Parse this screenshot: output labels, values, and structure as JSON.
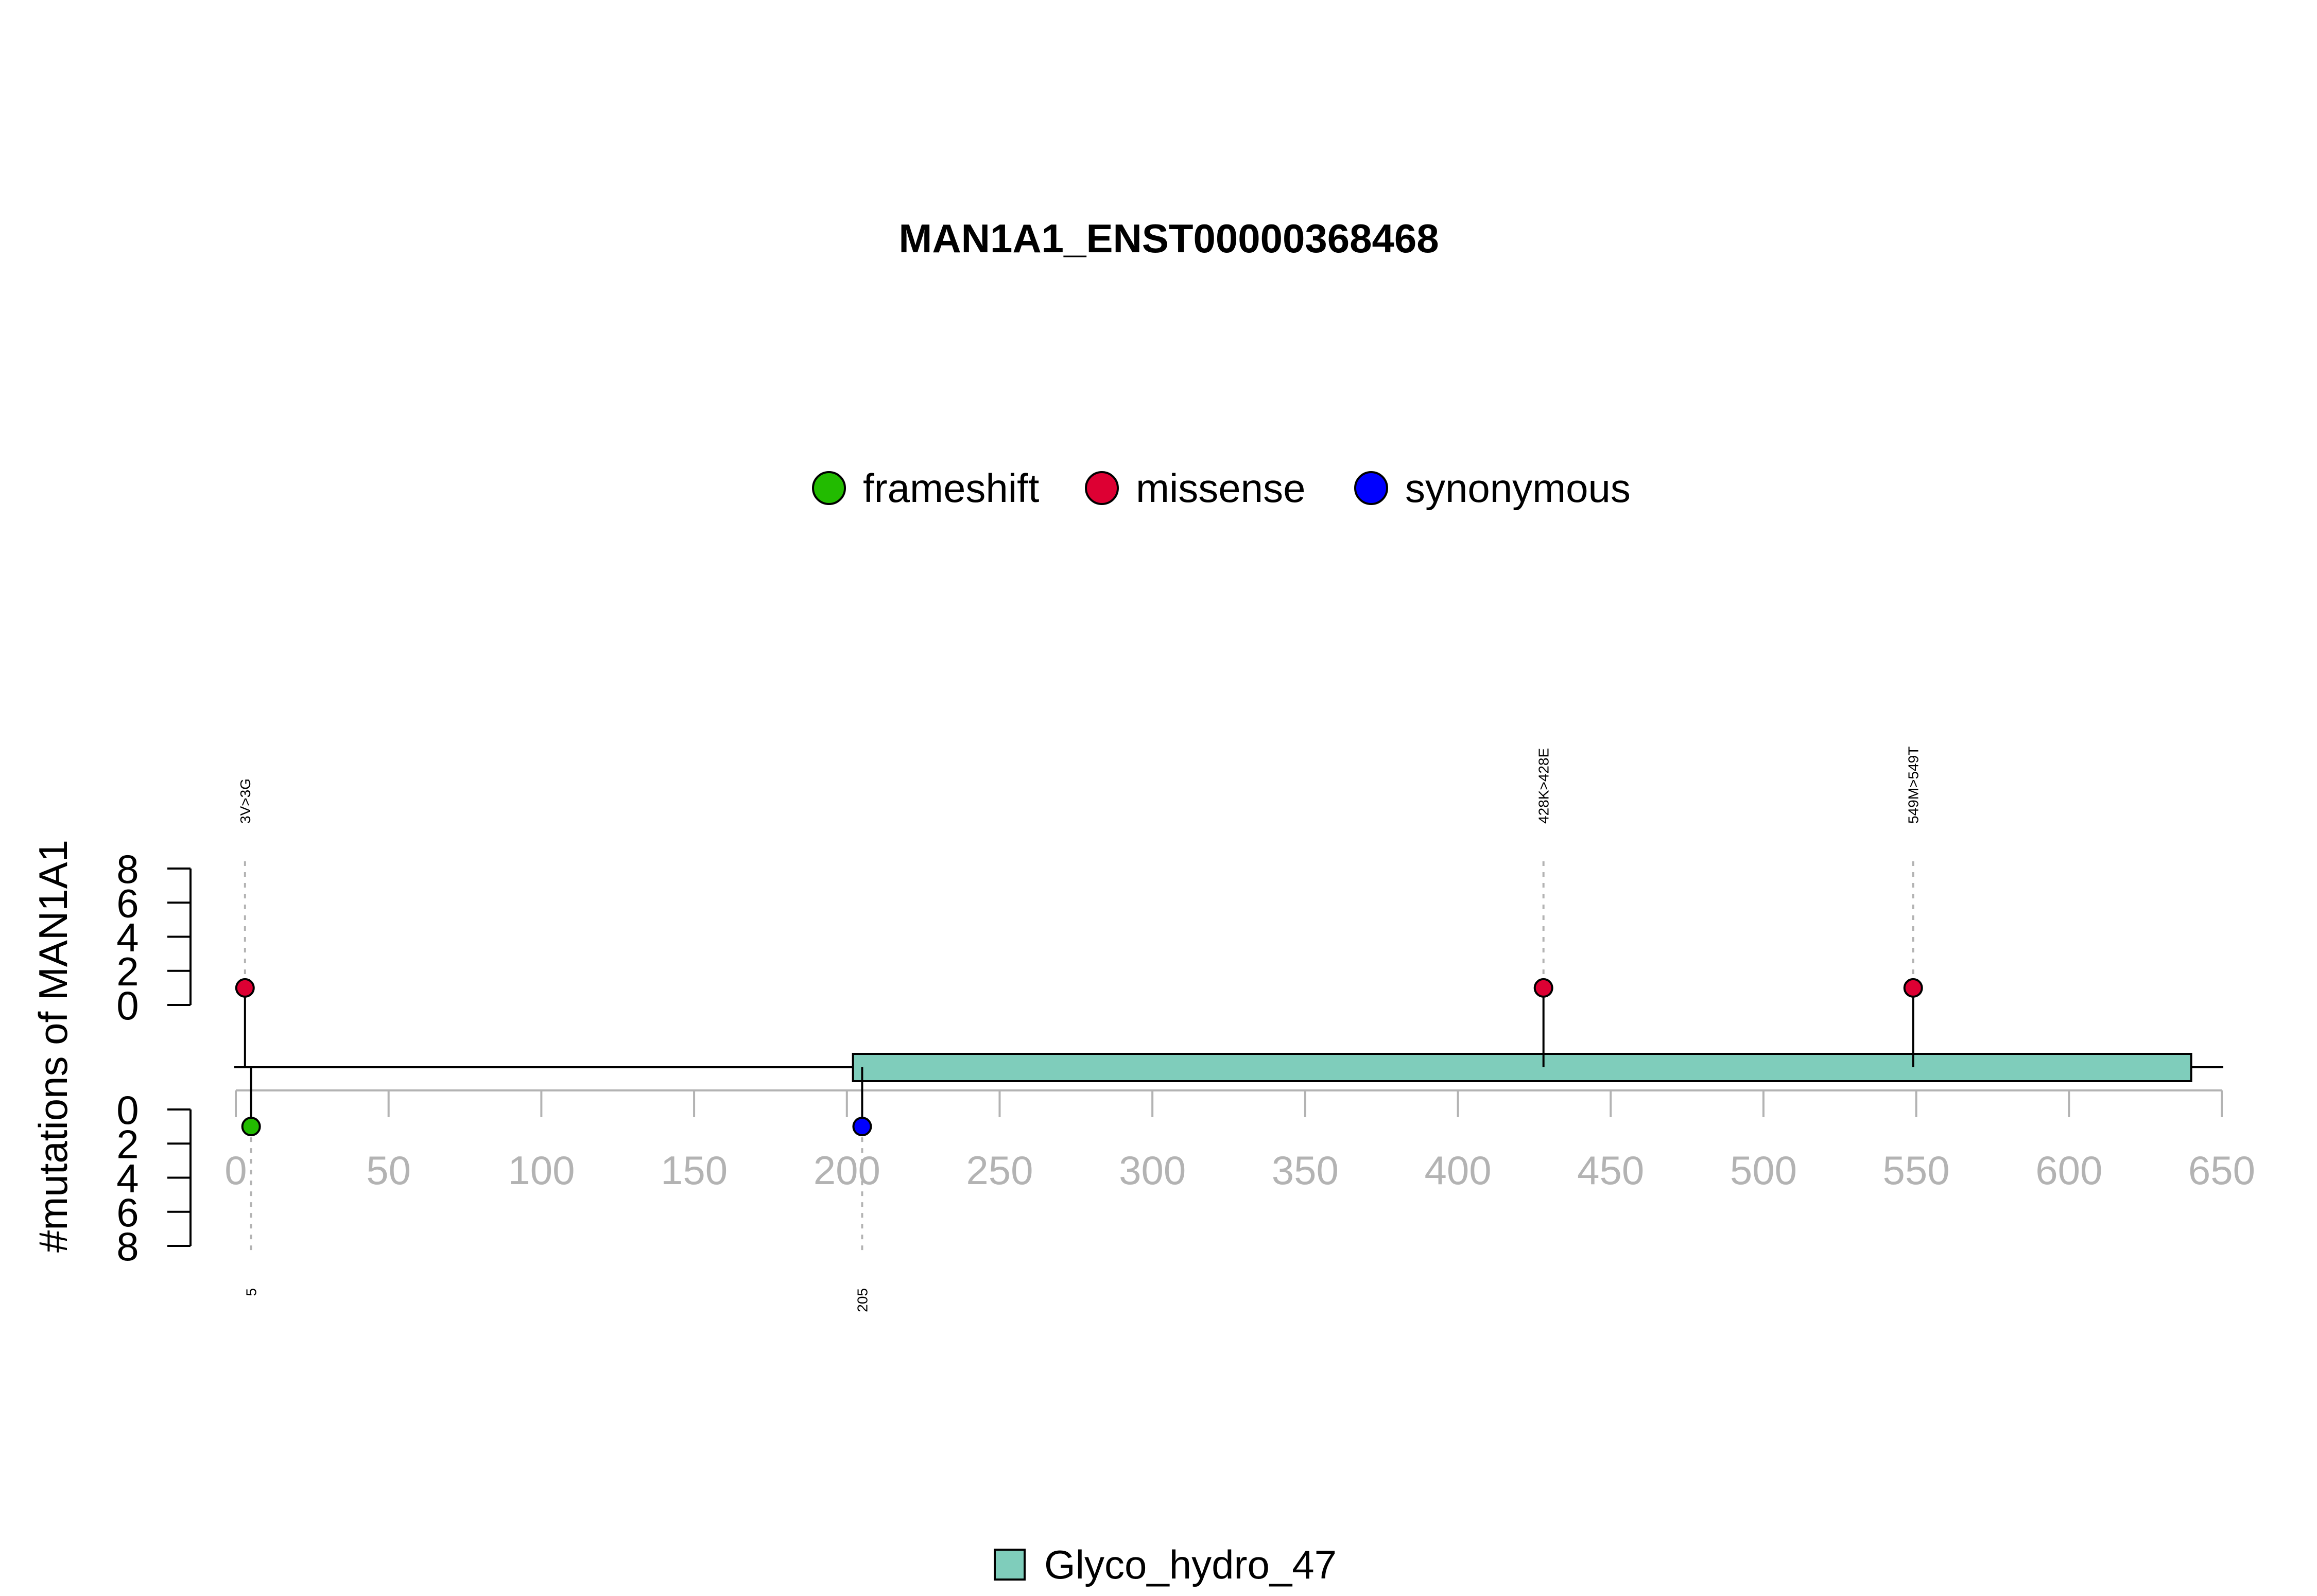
{
  "chart_data": {
    "type": "lollipop",
    "title": "MAN1A1_ENST00000368468",
    "ylabel": "#mutations of MAN1A1",
    "xlim": [
      0,
      650
    ],
    "x_ticks": [
      0,
      50,
      100,
      150,
      200,
      250,
      300,
      350,
      400,
      450,
      500,
      550,
      600,
      650
    ],
    "protein_length": 650,
    "upper_axis": {
      "ylim": [
        0,
        8
      ],
      "ticks": [
        0,
        2,
        4,
        6,
        8
      ]
    },
    "lower_axis": {
      "ylim": [
        0,
        8
      ],
      "ticks": [
        0,
        2,
        4,
        6,
        8
      ]
    },
    "legend_mutations": [
      {
        "name": "frameshift",
        "color": "#22bb00"
      },
      {
        "name": "missense",
        "color": "#dd0033"
      },
      {
        "name": "synonymous",
        "color": "#0000ff"
      }
    ],
    "mutations_upper": [
      {
        "position": 3,
        "count": 1,
        "type": "missense",
        "label": "3V>3G"
      },
      {
        "position": 428,
        "count": 1,
        "type": "missense",
        "label": "428K>428E"
      },
      {
        "position": 549,
        "count": 1,
        "type": "missense",
        "label": "549M>549T"
      }
    ],
    "mutations_lower": [
      {
        "position": 5,
        "count": 1,
        "type": "frameshift",
        "label": "5"
      },
      {
        "position": 205,
        "count": 1,
        "type": "synonymous",
        "label": "205"
      }
    ],
    "domains": [
      {
        "name": "Glyco_hydro_47",
        "start": 202,
        "end": 640,
        "color": "#7fcdbb"
      }
    ]
  }
}
